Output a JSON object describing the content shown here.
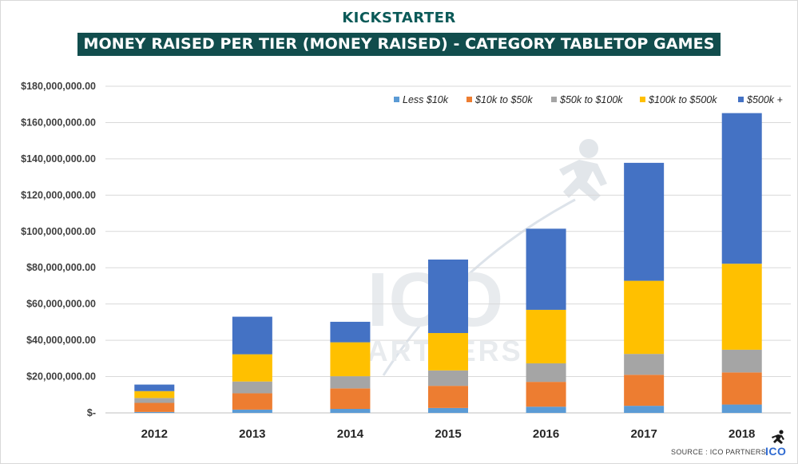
{
  "header": {
    "brand": "KICKSTARTER",
    "title": "MONEY RAISED PER TIER (MONEY RAISED) - CATEGORY TABLETOP  GAMES"
  },
  "watermark": {
    "main": "ICO",
    "sub": "PARTNERS"
  },
  "footer": {
    "source": "SOURCE : ICO PARTNERS",
    "logo": "ICO"
  },
  "chart_data": {
    "type": "bar",
    "stacked": true,
    "title": "MONEY RAISED PER TIER (MONEY RAISED) - CATEGORY TABLETOP  GAMES",
    "xlabel": "",
    "ylabel": "",
    "ylim": [
      0,
      180000000
    ],
    "yticks": [
      0,
      20000000,
      40000000,
      60000000,
      80000000,
      100000000,
      120000000,
      140000000,
      160000000,
      180000000
    ],
    "ytick_labels": [
      "$-",
      "$20,000,000.00",
      "$40,000,000.00",
      "$60,000,000.00",
      "$80,000,000.00",
      "$100,000,000.00",
      "$120,000,000.00",
      "$140,000,000.00",
      "$160,000,000.00",
      "$180,000,000.00"
    ],
    "grid": true,
    "legend_position": "top-right",
    "categories": [
      "2012",
      "2013",
      "2014",
      "2015",
      "2016",
      "2017",
      "2018"
    ],
    "series": [
      {
        "name": "Less $10k",
        "color": "#5b9bd5",
        "values": [
          500000,
          1800000,
          2200000,
          2700000,
          3400000,
          3900000,
          4600000
        ]
      },
      {
        "name": "$10k to $50k",
        "color": "#ed7d31",
        "values": [
          5000000,
          9000000,
          11300000,
          12200000,
          13700000,
          17100000,
          17700000
        ]
      },
      {
        "name": "$50k to $100k",
        "color": "#a5a5a5",
        "values": [
          2700000,
          6500000,
          6700000,
          8500000,
          10200000,
          11500000,
          12500000
        ]
      },
      {
        "name": "$100k to $500k",
        "color": "#ffc000",
        "values": [
          3800000,
          15000000,
          18700000,
          20600000,
          29500000,
          40300000,
          47400000
        ]
      },
      {
        "name": "$500k +",
        "color": "#4472c4",
        "values": [
          3600000,
          20700000,
          11300000,
          40500000,
          44700000,
          65000000,
          83000000
        ]
      }
    ]
  }
}
